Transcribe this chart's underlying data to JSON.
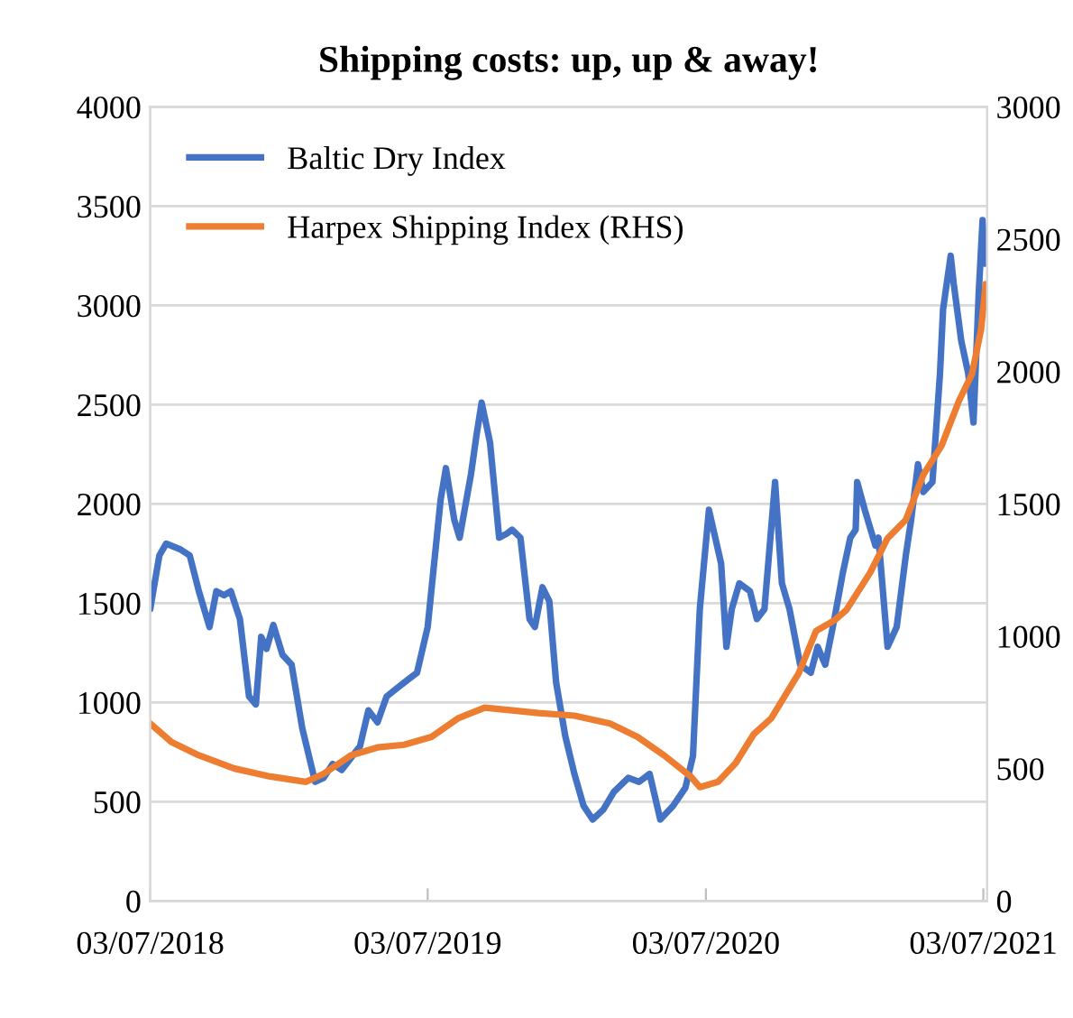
{
  "chart_data": {
    "type": "line",
    "title": "Shipping costs: up, up & away!",
    "xlim": [
      "2018-07-03",
      "2021-07-08"
    ],
    "xticks": [
      {
        "value": "2018-07-03",
        "label": "03/07/2018"
      },
      {
        "value": "2019-07-03",
        "label": "03/07/2019"
      },
      {
        "value": "2020-07-03",
        "label": "03/07/2020"
      },
      {
        "value": "2021-07-03",
        "label": "03/07/2021"
      }
    ],
    "ylim": [
      0,
      4000
    ],
    "yticks": [
      0,
      500,
      1000,
      1500,
      2000,
      2500,
      3000,
      3500,
      4000
    ],
    "y2lim": [
      0,
      3000
    ],
    "y2ticks": [
      0,
      500,
      1000,
      1500,
      2000,
      2500,
      3000
    ],
    "grid": "y",
    "legend": "top left",
    "marker": "none",
    "line_style": "solid",
    "series": [
      {
        "name": "Baltic Dry Index",
        "color": "#4472c4",
        "x": [
          "2018-07-03",
          "2018-07-15",
          "2018-07-24",
          "2018-08-12",
          "2018-08-24",
          "2018-09-05",
          "2018-09-19",
          "2018-09-28",
          "2018-10-08",
          "2018-10-17",
          "2018-10-29",
          "2018-11-10",
          "2018-11-19",
          "2018-11-26",
          "2018-12-03",
          "2018-12-12",
          "2018-12-24",
          "2019-01-05",
          "2019-01-19",
          "2019-02-05",
          "2019-02-16",
          "2019-02-28",
          "2019-03-12",
          "2019-03-26",
          "2019-04-05",
          "2019-04-16",
          "2019-04-28",
          "2019-05-10",
          "2019-06-02",
          "2019-06-19",
          "2019-07-03",
          "2019-07-20",
          "2019-07-27",
          "2019-08-07",
          "2019-08-14",
          "2019-08-29",
          "2019-09-05",
          "2019-09-12",
          "2019-09-23",
          "2019-10-05",
          "2019-10-15",
          "2019-10-22",
          "2019-11-02",
          "2019-11-14",
          "2019-11-21",
          "2019-12-01",
          "2019-12-10",
          "2019-12-19",
          "2019-12-31",
          "2020-01-12",
          "2020-01-24",
          "2020-02-05",
          "2020-02-19",
          "2020-03-04",
          "2020-03-23",
          "2020-04-06",
          "2020-04-20",
          "2020-05-04",
          "2020-05-21",
          "2020-06-06",
          "2020-06-16",
          "2020-06-25",
          "2020-07-07",
          "2020-07-23",
          "2020-07-30",
          "2020-08-06",
          "2020-08-16",
          "2020-08-30",
          "2020-09-08",
          "2020-09-18",
          "2020-10-02",
          "2020-10-11",
          "2020-10-21",
          "2020-11-04",
          "2020-11-18",
          "2020-11-27",
          "2020-12-07",
          "2020-12-19",
          "2020-12-30",
          "2021-01-09",
          "2021-01-16",
          "2021-01-18",
          "2021-01-28",
          "2021-02-11",
          "2021-02-15",
          "2021-02-27",
          "2021-03-11",
          "2021-03-23",
          "2021-03-30",
          "2021-04-08",
          "2021-04-15",
          "2021-04-27",
          "2021-05-07",
          "2021-05-11",
          "2021-05-21",
          "2021-05-25",
          "2021-06-04",
          "2021-06-13",
          "2021-06-20",
          "2021-06-27",
          "2021-07-02",
          "2021-07-06"
        ],
        "values": [
          1470,
          1740,
          1800,
          1770,
          1740,
          1560,
          1380,
          1560,
          1540,
          1560,
          1420,
          1030,
          990,
          1330,
          1270,
          1390,
          1240,
          1190,
          870,
          600,
          620,
          690,
          660,
          730,
          780,
          960,
          900,
          1030,
          1100,
          1150,
          1380,
          2020,
          2180,
          1920,
          1830,
          2150,
          2340,
          2510,
          2310,
          1830,
          1850,
          1870,
          1830,
          1420,
          1380,
          1580,
          1510,
          1100,
          830,
          640,
          480,
          410,
          460,
          550,
          620,
          600,
          640,
          410,
          480,
          570,
          730,
          1470,
          1970,
          1700,
          1280,
          1470,
          1600,
          1560,
          1420,
          1470,
          2110,
          1600,
          1470,
          1190,
          1150,
          1280,
          1190,
          1420,
          1650,
          1830,
          1870,
          2110,
          1970,
          1790,
          1830,
          1280,
          1380,
          1740,
          1920,
          2200,
          2060,
          2110,
          2660,
          2980,
          3250,
          3110,
          2820,
          2660,
          2410,
          3070,
          3430,
          3210
        ]
      },
      {
        "name": "Harpex Shipping Index (RHS)",
        "color": "#ed7d31",
        "axis": "y2",
        "x": [
          "2018-07-03",
          "2018-07-31",
          "2018-09-05",
          "2018-10-22",
          "2018-12-08",
          "2019-01-24",
          "2019-02-16",
          "2019-03-24",
          "2019-04-28",
          "2019-06-02",
          "2019-07-08",
          "2019-08-12",
          "2019-09-16",
          "2019-10-22",
          "2019-11-26",
          "2020-01-12",
          "2020-02-28",
          "2020-04-04",
          "2020-05-09",
          "2020-06-13",
          "2020-06-25",
          "2020-07-19",
          "2020-08-11",
          "2020-09-04",
          "2020-09-27",
          "2020-11-02",
          "2020-11-25",
          "2020-12-19",
          "2021-01-04",
          "2021-02-04",
          "2021-02-27",
          "2021-03-23",
          "2021-04-15",
          "2021-05-09",
          "2021-06-01",
          "2021-06-18",
          "2021-06-30",
          "2021-07-06"
        ],
        "values": [
          670,
          600,
          550,
          500,
          470,
          450,
          480,
          550,
          580,
          590,
          620,
          690,
          730,
          720,
          710,
          700,
          670,
          620,
          550,
          470,
          430,
          450,
          520,
          630,
          690,
          860,
          1020,
          1060,
          1100,
          1240,
          1370,
          1440,
          1610,
          1720,
          1890,
          1990,
          2160,
          2330
        ]
      }
    ]
  }
}
